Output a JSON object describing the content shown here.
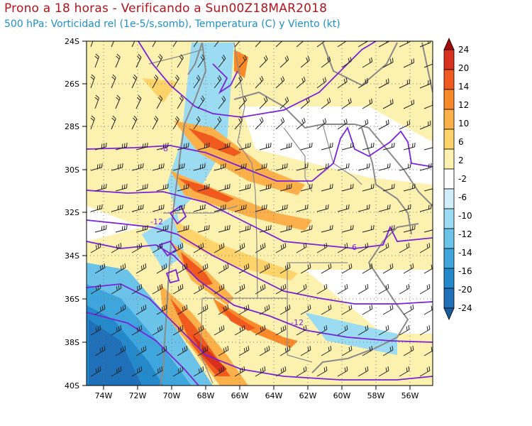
{
  "header": {
    "title": "Prono a 18 horas - Verificando a Sun00Z18MAR2018",
    "subtitle": "500 hPa: Vorticidad rel (1e-5/s,somb), Temperatura (C) y Viento (kt)"
  },
  "axes": {
    "lat_labels": [
      "24S",
      "26S",
      "28S",
      "30S",
      "32S",
      "34S",
      "36S",
      "38S",
      "40S"
    ],
    "lon_labels": [
      "74W",
      "72W",
      "70W",
      "68W",
      "66W",
      "64W",
      "62W",
      "60W",
      "58W",
      "56W"
    ]
  },
  "colorbar": {
    "labels": [
      "24",
      "20",
      "14",
      "12",
      "10",
      "6",
      "2",
      "-2",
      "-6",
      "-10",
      "-12",
      "-14",
      "-16",
      "-20",
      "-24"
    ],
    "colors": [
      "#a50a0a",
      "#d7301f",
      "#f05a1e",
      "#f88a2a",
      "#fbb04a",
      "#fdd36a",
      "#fdf1b0",
      "#ffffff",
      "#cfeefa",
      "#9bdcf3",
      "#6cc3ea",
      "#3ea6dd",
      "#2389cb",
      "#1f70b8",
      "#175a9e"
    ]
  },
  "contour_labels": [
    "-8",
    "-12",
    "-6",
    "-12"
  ],
  "colors": {
    "title": "#b0141c",
    "subtitle": "#1e8fc8",
    "temperature_contour": "#7a22d6",
    "borders": "#8a8a8a"
  }
}
